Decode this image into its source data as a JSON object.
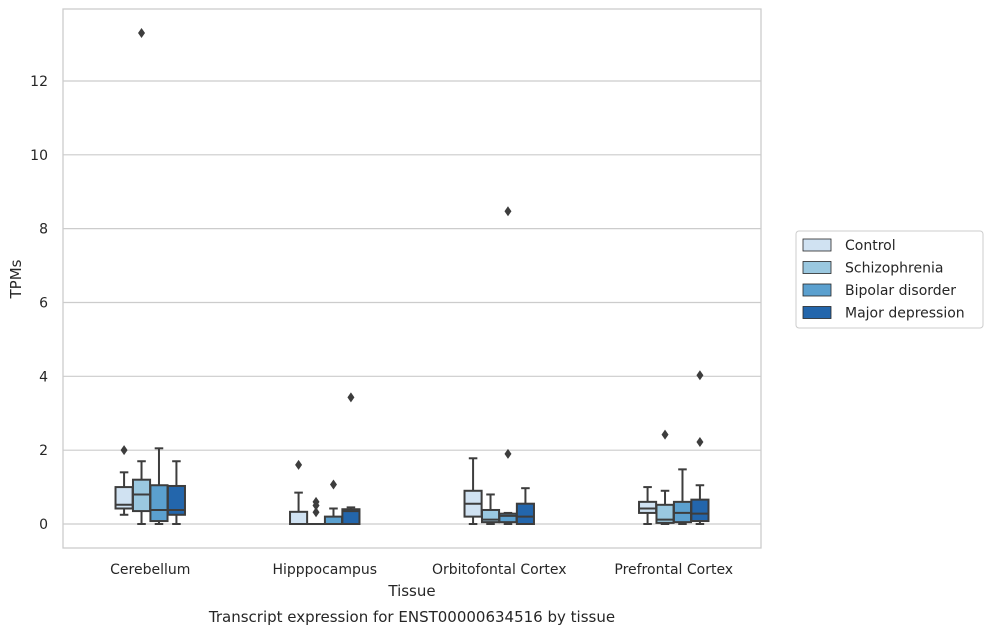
{
  "chart_data": {
    "type": "box",
    "title": "Transcript expression for ENST00000634516 by tissue",
    "xlabel": "Tissue",
    "ylabel": "TPMs",
    "ylim": [
      -0.65,
      13.95
    ],
    "yticks": [
      0,
      2,
      4,
      6,
      8,
      10,
      12
    ],
    "grid": "horizontal",
    "legend_position": "right",
    "categories": [
      "Cerebellum",
      "Hipppocampus",
      "Orbitofontal Cortex",
      "Prefrontal Cortex"
    ],
    "series": [
      {
        "name": "Control",
        "color": "#d0e2f2",
        "boxes": [
          {
            "whislo": 0.25,
            "q1": 0.42,
            "med": 0.52,
            "q3": 1.0,
            "whishi": 1.4,
            "fliers": [
              2.0
            ]
          },
          {
            "whislo": 0.0,
            "q1": 0.0,
            "med": 0.0,
            "q3": 0.33,
            "whishi": 0.85,
            "fliers": [
              1.6
            ]
          },
          {
            "whislo": 0.0,
            "q1": 0.2,
            "med": 0.55,
            "q3": 0.9,
            "whishi": 1.78,
            "fliers": []
          },
          {
            "whislo": 0.0,
            "q1": 0.3,
            "med": 0.42,
            "q3": 0.6,
            "whishi": 1.0,
            "fliers": []
          }
        ]
      },
      {
        "name": "Schizophrenia",
        "color": "#9ac8e0",
        "boxes": [
          {
            "whislo": 0.0,
            "q1": 0.35,
            "med": 0.8,
            "q3": 1.2,
            "whishi": 1.7,
            "fliers": [
              13.3
            ]
          },
          {
            "whislo": 0.0,
            "q1": 0.0,
            "med": 0.0,
            "q3": 0.0,
            "whishi": 0.0,
            "fliers": [
              0.32,
              0.5,
              0.6
            ]
          },
          {
            "whislo": 0.0,
            "q1": 0.05,
            "med": 0.12,
            "q3": 0.38,
            "whishi": 0.8,
            "fliers": []
          },
          {
            "whislo": 0.0,
            "q1": 0.03,
            "med": 0.12,
            "q3": 0.52,
            "whishi": 0.9,
            "fliers": [
              2.42
            ]
          }
        ]
      },
      {
        "name": "Bipolar disorder",
        "color": "#5ba0cf",
        "boxes": [
          {
            "whislo": 0.0,
            "q1": 0.08,
            "med": 0.38,
            "q3": 1.05,
            "whishi": 2.05,
            "fliers": []
          },
          {
            "whislo": 0.0,
            "q1": 0.0,
            "med": 0.0,
            "q3": 0.2,
            "whishi": 0.42,
            "fliers": [
              1.07
            ]
          },
          {
            "whislo": 0.0,
            "q1": 0.05,
            "med": 0.22,
            "q3": 0.28,
            "whishi": 0.3,
            "fliers": [
              8.47,
              1.9
            ]
          },
          {
            "whislo": 0.0,
            "q1": 0.05,
            "med": 0.3,
            "q3": 0.6,
            "whishi": 1.48,
            "fliers": []
          }
        ]
      },
      {
        "name": "Major depression",
        "color": "#2366ac",
        "boxes": [
          {
            "whislo": 0.0,
            "q1": 0.25,
            "med": 0.38,
            "q3": 1.03,
            "whishi": 1.7,
            "fliers": []
          },
          {
            "whislo": 0.0,
            "q1": 0.0,
            "med": 0.35,
            "q3": 0.4,
            "whishi": 0.45,
            "fliers": [
              3.43
            ]
          },
          {
            "whislo": 0.0,
            "q1": 0.0,
            "med": 0.2,
            "q3": 0.55,
            "whishi": 0.97,
            "fliers": []
          },
          {
            "whislo": 0.0,
            "q1": 0.08,
            "med": 0.28,
            "q3": 0.66,
            "whishi": 1.05,
            "fliers": [
              4.03,
              2.22
            ]
          }
        ]
      }
    ]
  }
}
